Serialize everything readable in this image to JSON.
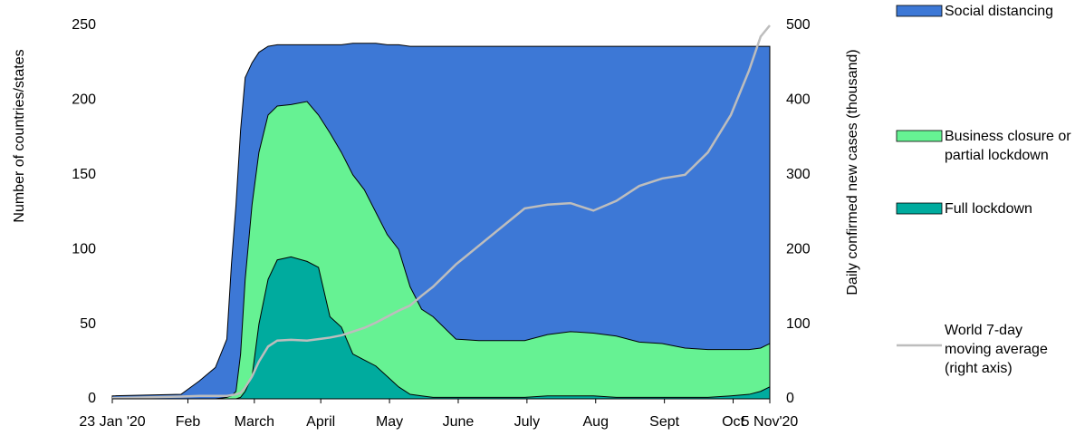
{
  "chart_data": {
    "type": "area",
    "ylabel": "Number of countries/states",
    "y2label": "Daily confirmed new cases (thousand)",
    "x": [
      0,
      30,
      38,
      45,
      50,
      52,
      54,
      56,
      58,
      61,
      64,
      68,
      72,
      78,
      85,
      90,
      95,
      100,
      105,
      110,
      115,
      120,
      125,
      130,
      135,
      140,
      150,
      160,
      170,
      180,
      190,
      200,
      210,
      220,
      230,
      240,
      250,
      260,
      270,
      278,
      283,
      287
    ],
    "xlim": [
      0,
      287
    ],
    "xticks": [
      {
        "value": 0,
        "label": "23 Jan '20"
      },
      {
        "value": 33,
        "label": "Feb"
      },
      {
        "value": 62,
        "label": "March"
      },
      {
        "value": 91,
        "label": "April"
      },
      {
        "value": 121,
        "label": "May"
      },
      {
        "value": 151,
        "label": "June"
      },
      {
        "value": 181,
        "label": "July"
      },
      {
        "value": 211,
        "label": "Aug"
      },
      {
        "value": 241,
        "label": "Sept"
      },
      {
        "value": 271,
        "label": "Oct"
      },
      {
        "value": 287,
        "label": "5 Nov'20"
      }
    ],
    "ylim": [
      0,
      250
    ],
    "yticks": [
      0,
      50,
      100,
      150,
      200,
      250
    ],
    "y2lim": [
      0,
      500
    ],
    "y2ticks": [
      0,
      100,
      200,
      300,
      400,
      500
    ],
    "series": [
      {
        "name": "Social distancing",
        "color": "#3d78d6",
        "values": [
          2,
          3,
          12,
          21,
          40,
          90,
          130,
          180,
          215,
          225,
          232,
          236,
          237,
          237,
          237,
          237,
          237,
          237,
          238,
          238,
          238,
          237,
          237,
          236,
          236,
          236,
          236,
          236,
          236,
          236,
          236,
          236,
          236,
          236,
          236,
          236,
          236,
          236,
          236,
          236,
          236,
          236
        ]
      },
      {
        "name": "Business closure or partial lockdown",
        "color": "#66f293",
        "values": [
          0,
          0,
          0,
          0,
          1,
          2,
          5,
          30,
          80,
          130,
          165,
          190,
          196,
          197,
          199,
          190,
          178,
          165,
          150,
          140,
          125,
          110,
          100,
          75,
          60,
          55,
          40,
          39,
          39,
          39,
          43,
          45,
          44,
          42,
          38,
          37,
          34,
          33,
          33,
          33,
          34,
          37
        ]
      },
      {
        "name": "Full lockdown",
        "color": "#00ab9e",
        "values": [
          0,
          0,
          0,
          0,
          0,
          0,
          0,
          1,
          5,
          15,
          50,
          80,
          93,
          95,
          92,
          88,
          55,
          48,
          30,
          26,
          22,
          15,
          8,
          3,
          2,
          1,
          1,
          1,
          1,
          1,
          2,
          2,
          2,
          1,
          1,
          1,
          1,
          1,
          2,
          3,
          5,
          8
        ]
      },
      {
        "name": "World 7-day moving average (right axis)",
        "color": "#bdbdbd",
        "axis": "y2",
        "line": true,
        "values": [
          1,
          3,
          4,
          4,
          4,
          5,
          6,
          8,
          15,
          30,
          50,
          70,
          78,
          79,
          78,
          80,
          82,
          85,
          90,
          95,
          102,
          110,
          118,
          125,
          138,
          150,
          180,
          205,
          230,
          255,
          260,
          262,
          252,
          265,
          285,
          295,
          300,
          330,
          380,
          440,
          485,
          500
        ]
      }
    ]
  }
}
